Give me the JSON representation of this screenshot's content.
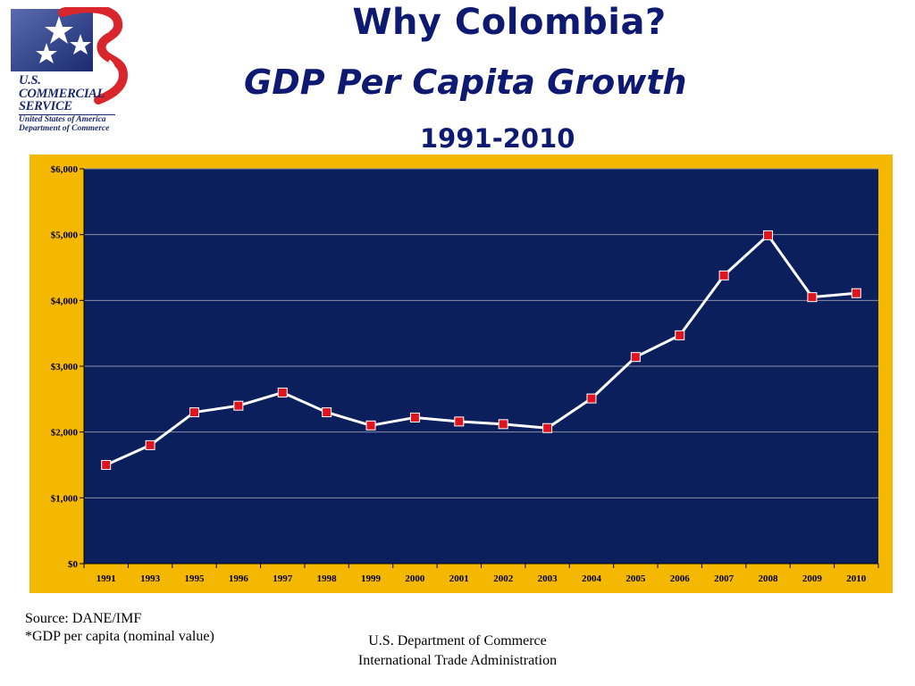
{
  "logo": {
    "line1": "U.S.",
    "line2": "COMMERCIAL",
    "line3": "SERVICE",
    "line4": "United States of America",
    "line5": "Department of Commerce",
    "colors": {
      "navy": "#1b2a6e",
      "red": "#d8262c"
    }
  },
  "title": "Why Colombia?",
  "subtitle": "GDP Per Capita Growth",
  "years_range": "1991-2010",
  "source_lines": [
    "Source: DANE/IMF",
    "*GDP per capita (nominal value)"
  ],
  "footer_lines": [
    "U.S. Department of Commerce",
    "International Trade Administration"
  ],
  "colors": {
    "frame": "#f5b800",
    "plot_bg": "#0b1f5c",
    "line": "#ffffff",
    "marker": "#e0141e",
    "title": "#0e1a72"
  },
  "chart_data": {
    "type": "line",
    "categories": [
      "1991",
      "1993",
      "1995",
      "1996",
      "1997",
      "1998",
      "1999",
      "2000",
      "2001",
      "2002",
      "2003",
      "2004",
      "2005",
      "2006",
      "2007",
      "2008",
      "2009",
      "2010"
    ],
    "values": [
      1500,
      1800,
      2300,
      2400,
      2600,
      2300,
      2100,
      2220,
      2160,
      2120,
      2060,
      2510,
      3140,
      3470,
      4380,
      4990,
      4050,
      4110
    ],
    "y_ticks": [
      "$0",
      "$1,000",
      "$2,000",
      "$3,000",
      "$4,000",
      "$5,000",
      "$6,000"
    ],
    "ylim": [
      0,
      6000
    ],
    "grid": true,
    "legend": "none"
  }
}
